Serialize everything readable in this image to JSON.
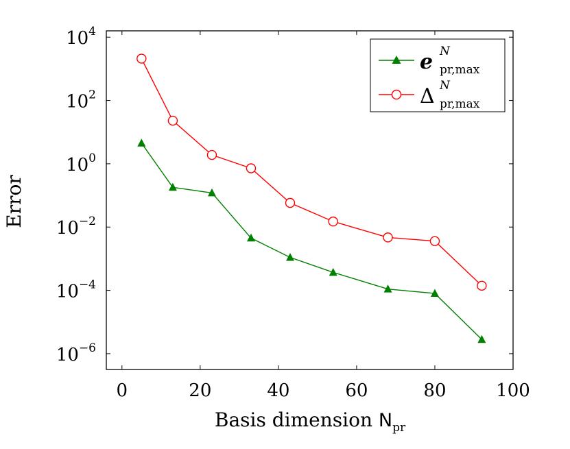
{
  "chart_data": {
    "type": "line",
    "title": "",
    "xlabel": "Basis dimension",
    "xlabel_symbol": "N",
    "xlabel_symbol_sub": "pr",
    "ylabel": "Error",
    "xlim": [
      -4,
      100
    ],
    "ylim_log10": [
      -6.5,
      4.2
    ],
    "y_scale": "log",
    "x_ticks": [
      "0",
      "20",
      "40",
      "60",
      "80",
      "100"
    ],
    "y_ticks": [
      {
        "base": "10",
        "exp": "4"
      },
      {
        "base": "10",
        "exp": "2"
      },
      {
        "base": "10",
        "exp": "0"
      },
      {
        "base": "10",
        "exp": "−2"
      },
      {
        "base": "10",
        "exp": "−4"
      },
      {
        "base": "10",
        "exp": "−6"
      }
    ],
    "grid": false,
    "legend_position": "top-right",
    "series": [
      {
        "name": "e",
        "name_sup": "N",
        "name_sub": "pr,max",
        "color": "#008000",
        "marker": "filled-triangle",
        "x": [
          5,
          13,
          23,
          33,
          43,
          54,
          68,
          80,
          92
        ],
        "y": [
          4.5,
          0.18,
          0.12,
          0.0045,
          0.0011,
          0.00037,
          0.00011,
          8e-05,
          2.8e-06
        ]
      },
      {
        "name": "Δ",
        "name_sup": "N",
        "name_sub": "pr,max",
        "color": "#ff0000",
        "marker": "open-circle",
        "x": [
          5,
          13,
          23,
          33,
          43,
          54,
          68,
          80,
          92
        ],
        "y": [
          2100,
          23,
          1.9,
          0.72,
          0.058,
          0.015,
          0.0047,
          0.0036,
          0.00014
        ]
      }
    ]
  }
}
